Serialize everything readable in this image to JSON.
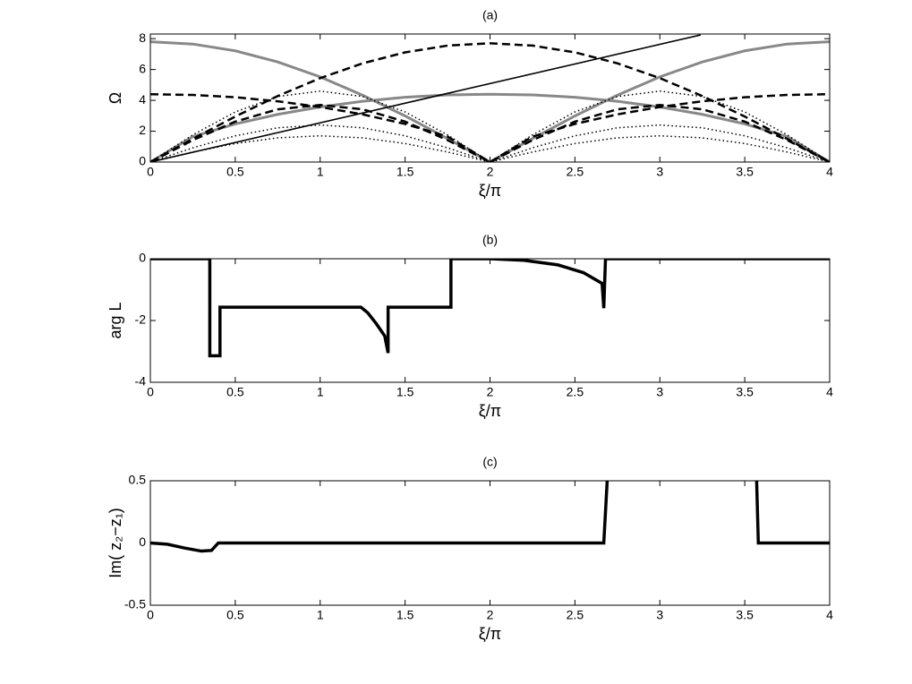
{
  "chart_data": [
    {
      "type": "line",
      "title": "(a)",
      "xlabel": "ξ/π",
      "ylabel": "Ω",
      "x": [
        0,
        0.25,
        0.5,
        0.75,
        1,
        1.25,
        1.5,
        1.75,
        2,
        2.25,
        2.5,
        2.75,
        3,
        3.25,
        3.5,
        3.75,
        4
      ],
      "xlim": [
        0,
        4
      ],
      "xticks": [
        0,
        0.5,
        1,
        1.5,
        2,
        2.5,
        3,
        3.5,
        4
      ],
      "ylim": [
        0,
        8.3
      ],
      "yticks": [
        0,
        2,
        4,
        6,
        8
      ],
      "grid": false,
      "series": [
        {
          "color": "#888888",
          "linestyle": "solid",
          "linewidth": 3,
          "values": [
            7.8,
            7.65,
            7.21,
            6.49,
            5.52,
            4.33,
            2.99,
            1.52,
            0,
            1.52,
            2.99,
            4.33,
            5.52,
            6.49,
            7.21,
            7.65,
            7.8
          ]
        },
        {
          "color": "#888888",
          "linestyle": "solid",
          "linewidth": 3,
          "values": [
            0,
            1.65,
            2.47,
            3.09,
            3.57,
            3.94,
            4.2,
            4.35,
            4.4,
            4.35,
            4.2,
            3.94,
            3.57,
            3.09,
            2.47,
            1.65,
            0
          ]
        },
        {
          "color": "#000000",
          "linestyle": "dashed",
          "linewidth": 2.5,
          "values": [
            0,
            1.5,
            2.95,
            4.28,
            5.44,
            6.4,
            7.11,
            7.55,
            7.7,
            7.55,
            7.11,
            6.4,
            5.44,
            4.28,
            2.95,
            1.5,
            0
          ]
        },
        {
          "color": "#000000",
          "linestyle": "dashed",
          "linewidth": 2.5,
          "values": [
            4.4,
            4.35,
            4.2,
            3.94,
            3.57,
            3.09,
            2.47,
            1.65,
            0,
            1.65,
            2.47,
            3.09,
            3.57,
            3.94,
            4.2,
            4.35,
            4.4
          ]
        },
        {
          "color": "#000000",
          "linestyle": "dashed",
          "linewidth": 2.5,
          "values": [
            0,
            1.42,
            2.62,
            3.42,
            3.7,
            3.42,
            2.62,
            1.42,
            0,
            1.42,
            2.62,
            3.42,
            3.7,
            3.42,
            2.62,
            1.42,
            0
          ]
        },
        {
          "color": "#000000",
          "linestyle": "dotted",
          "linewidth": 1.5,
          "values": [
            0,
            1.76,
            3.25,
            4.25,
            4.6,
            4.25,
            3.25,
            1.76,
            0,
            1.76,
            3.25,
            4.25,
            4.6,
            4.25,
            3.25,
            1.76,
            0
          ]
        },
        {
          "color": "#000000",
          "linestyle": "dotted",
          "linewidth": 1.5,
          "values": [
            0,
            0.92,
            1.7,
            2.22,
            2.4,
            2.22,
            1.7,
            0.92,
            0,
            0.92,
            1.7,
            2.22,
            2.4,
            2.22,
            1.7,
            0.92,
            0
          ]
        },
        {
          "color": "#000000",
          "linestyle": "dotted",
          "linewidth": 1.5,
          "values": [
            0,
            0.65,
            1.2,
            1.57,
            1.7,
            1.57,
            1.2,
            0.65,
            0,
            0.65,
            1.2,
            1.57,
            1.7,
            1.57,
            1.2,
            0.65,
            0
          ]
        },
        {
          "color": "#000000",
          "linestyle": "solid",
          "linewidth": 1.6,
          "x": [
            0,
            3.24
          ],
          "values": [
            0,
            8.24
          ]
        }
      ]
    },
    {
      "type": "line",
      "title": "(b)",
      "xlabel": "ξ/π",
      "ylabel": "arg  L",
      "x": [
        0,
        0.35,
        0.35,
        0.41,
        0.41,
        1.24,
        1.28,
        1.33,
        1.38,
        1.4,
        1.4,
        1.77,
        1.77,
        2.0,
        2.2,
        2.4,
        2.55,
        2.66,
        2.67,
        2.68,
        4
      ],
      "xlim": [
        0,
        4
      ],
      "xticks": [
        0,
        0.5,
        1,
        1.5,
        2,
        2.5,
        3,
        3.5,
        4
      ],
      "ylim": [
        -4,
        0
      ],
      "yticks": [
        -4,
        -2,
        0
      ],
      "grid": false,
      "series": [
        {
          "color": "#000000",
          "linestyle": "solid",
          "linewidth": 3.5,
          "values": [
            0,
            0,
            -3.14,
            -3.14,
            -1.57,
            -1.57,
            -1.75,
            -2.1,
            -2.5,
            -3.05,
            -1.57,
            -1.57,
            0,
            0,
            -0.05,
            -0.2,
            -0.45,
            -0.8,
            -1.6,
            0,
            0
          ]
        }
      ]
    },
    {
      "type": "line",
      "title": "(c)",
      "xlabel": "ξ/π",
      "ylabel": "Im( z₂−z₁)",
      "x": [
        0,
        0.1,
        0.2,
        0.3,
        0.36,
        0.4,
        2.67,
        2.69,
        3.0,
        3.57,
        3.58,
        4
      ],
      "xlim": [
        0,
        4
      ],
      "xticks": [
        0,
        0.5,
        1,
        1.5,
        2,
        2.5,
        3,
        3.5,
        4
      ],
      "ylim": [
        -0.5,
        0.5
      ],
      "yticks": [
        -0.5,
        0,
        0.5
      ],
      "grid": false,
      "series": [
        {
          "color": "#000000",
          "linestyle": "solid",
          "linewidth": 3.5,
          "values": [
            0,
            -0.01,
            -0.04,
            -0.065,
            -0.06,
            0,
            0,
            0.5,
            null,
            0.5,
            0,
            0
          ]
        }
      ]
    }
  ]
}
